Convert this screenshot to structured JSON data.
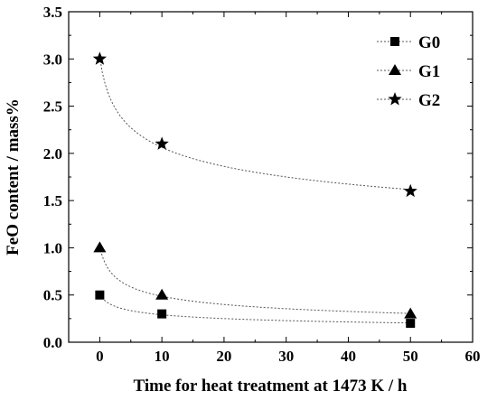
{
  "chart_data": {
    "type": "scatter",
    "xlabel": "Time for heat treatment at 1473 K / h",
    "ylabel": "FeO content / mass%",
    "xlim": [
      -5,
      60
    ],
    "ylim": [
      0.0,
      3.5
    ],
    "x_ticks": [
      "0",
      "10",
      "20",
      "30",
      "40",
      "50",
      "60"
    ],
    "y_ticks": [
      "0.0",
      "0.5",
      "1.0",
      "1.5",
      "2.0",
      "2.5",
      "3.0",
      "3.5"
    ],
    "grid": false,
    "legend_position": "top-right",
    "series": [
      {
        "name": "G0",
        "marker": "square",
        "x": [
          0,
          10,
          50
        ],
        "y": [
          0.5,
          0.3,
          0.2
        ],
        "fit": "dotted-curve"
      },
      {
        "name": "G1",
        "marker": "triangle",
        "x": [
          0,
          10,
          50
        ],
        "y": [
          1.0,
          0.5,
          0.3
        ],
        "fit": "dotted-curve"
      },
      {
        "name": "G2",
        "marker": "star",
        "x": [
          0,
          10,
          50
        ],
        "y": [
          3.0,
          2.1,
          1.6
        ],
        "fit": "dotted-curve"
      }
    ]
  }
}
